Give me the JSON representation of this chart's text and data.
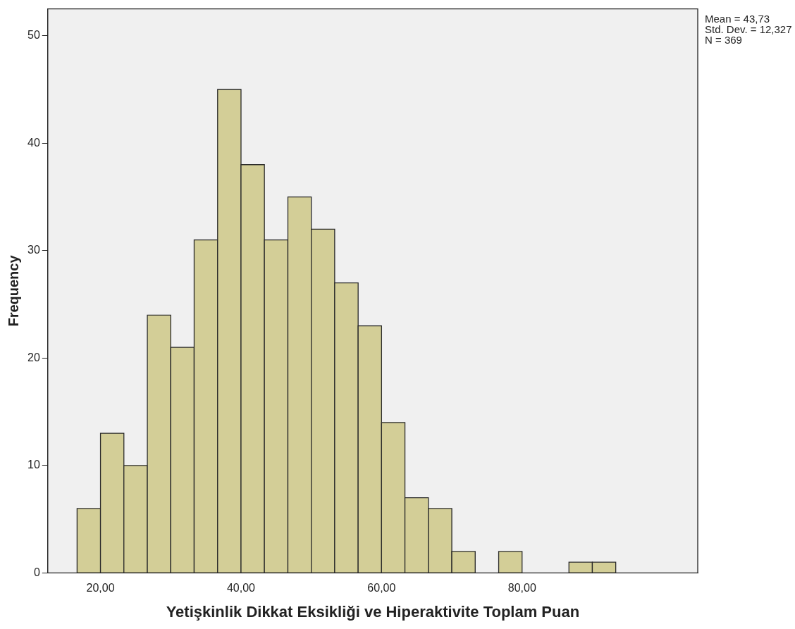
{
  "chart_data": {
    "type": "histogram",
    "xlabel": "Yetişkinlik Dikkat Eksikliği ve Hiperaktivite Toplam Puan",
    "ylabel": "Frequency",
    "bins": [
      16.67,
      20,
      23.33,
      26.67,
      30,
      33.33,
      36.67,
      40,
      43.33,
      46.67,
      50,
      53.33,
      56.67,
      60,
      63.33,
      66.67,
      70,
      73.33,
      76.67,
      80,
      83.33,
      86.67,
      90,
      93.33
    ],
    "values": [
      6,
      13,
      10,
      24,
      21,
      31,
      45,
      38,
      31,
      35,
      32,
      27,
      23,
      14,
      7,
      6,
      2,
      0,
      2,
      0,
      0,
      1,
      1
    ],
    "color": "#d3ce97",
    "xlim": [
      12.5,
      105
    ],
    "xticks": [
      {
        "value": 20,
        "label": "20,00"
      },
      {
        "value": 40,
        "label": "40,00"
      },
      {
        "value": 60,
        "label": "60,00"
      },
      {
        "value": 80,
        "label": "80,00"
      }
    ],
    "ylim": [
      0,
      52.5
    ],
    "yticks": [
      0,
      10,
      20,
      30,
      40,
      50
    ],
    "grid": false,
    "legend": false,
    "annotations": [
      "Mean = 43,73",
      "Std. Dev. = 12,327",
      "N = 369"
    ]
  }
}
